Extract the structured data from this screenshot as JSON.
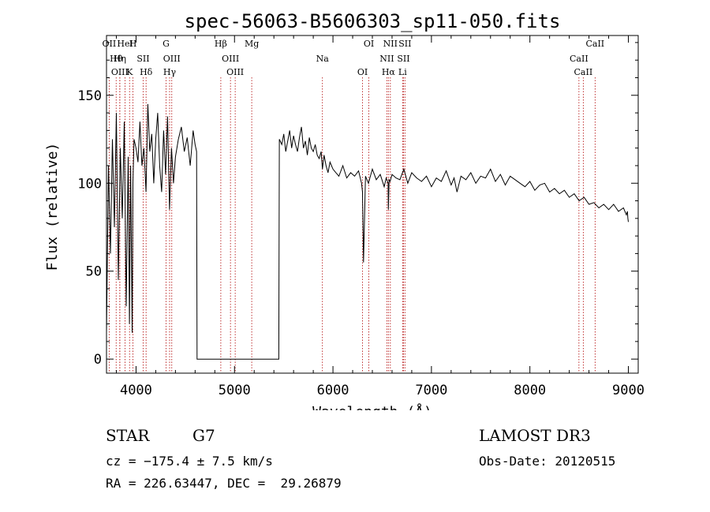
{
  "chart_data": {
    "type": "line",
    "title": "spec-56063-B5606303_sp11-050.fits",
    "xlabel": "Wavelength (Å)",
    "ylabel": "Flux (relative)",
    "xlim": [
      3700,
      9100
    ],
    "ylim": [
      -8,
      184
    ],
    "xticks": [
      4000,
      5000,
      6000,
      7000,
      8000,
      9000
    ],
    "xtick_labels": [
      "4000",
      "5000",
      "6000",
      "7000",
      "8000",
      "9000"
    ],
    "yticks": [
      0,
      50,
      100,
      150
    ],
    "ytick_labels": [
      "0",
      "50",
      "100",
      "150"
    ],
    "grid": false,
    "gap": [
      4620,
      5450
    ],
    "series": [
      {
        "name": "spectrum",
        "x": [
          3700,
          3720,
          3740,
          3760,
          3780,
          3800,
          3820,
          3840,
          3860,
          3880,
          3900,
          3920,
          3933,
          3945,
          3960,
          3968,
          3980,
          4000,
          4020,
          4040,
          4060,
          4080,
          4101,
          4120,
          4140,
          4160,
          4180,
          4200,
          4220,
          4240,
          4260,
          4280,
          4300,
          4320,
          4340,
          4360,
          4380,
          4400,
          4430,
          4460,
          4490,
          4520,
          4550,
          4580,
          4600,
          4615,
          4620,
          5450,
          5455,
          5480,
          5500,
          5520,
          5540,
          5560,
          5580,
          5600,
          5620,
          5640,
          5660,
          5680,
          5700,
          5720,
          5740,
          5760,
          5780,
          5800,
          5820,
          5840,
          5860,
          5880,
          5893,
          5910,
          5930,
          5950,
          5970,
          6000,
          6030,
          6060,
          6100,
          6140,
          6180,
          6220,
          6260,
          6290,
          6300,
          6310,
          6330,
          6360,
          6400,
          6440,
          6480,
          6520,
          6540,
          6560,
          6563,
          6570,
          6580,
          6600,
          6640,
          6680,
          6720,
          6760,
          6800,
          6850,
          6900,
          6950,
          7000,
          7050,
          7100,
          7150,
          7200,
          7230,
          7260,
          7300,
          7350,
          7400,
          7450,
          7500,
          7550,
          7600,
          7650,
          7700,
          7750,
          7800,
          7850,
          7900,
          7950,
          8000,
          8050,
          8100,
          8150,
          8200,
          8250,
          8300,
          8350,
          8400,
          8450,
          8500,
          8550,
          8600,
          8650,
          8700,
          8750,
          8800,
          8850,
          8900,
          8950,
          8980,
          8990,
          8995,
          9000
        ],
        "values": [
          15,
          110,
          60,
          125,
          75,
          140,
          45,
          120,
          80,
          135,
          30,
          115,
          20,
          110,
          15,
          100,
          125,
          120,
          112,
          135,
          110,
          120,
          95,
          145,
          118,
          128,
          100,
          125,
          140,
          110,
          95,
          130,
          105,
          138,
          85,
          120,
          100,
          115,
          125,
          132,
          118,
          126,
          110,
          130,
          122,
          118,
          0,
          0,
          125,
          122,
          128,
          118,
          124,
          130,
          120,
          127,
          122,
          118,
          126,
          132,
          120,
          124,
          116,
          126,
          120,
          118,
          122,
          116,
          114,
          118,
          108,
          116,
          110,
          106,
          112,
          108,
          106,
          104,
          110,
          103,
          106,
          104,
          107,
          100,
          95,
          55,
          104,
          100,
          108,
          102,
          105,
          98,
          103,
          100,
          85,
          102,
          101,
          105,
          103,
          102,
          108,
          100,
          106,
          103,
          101,
          104,
          98,
          103,
          101,
          107,
          99,
          103,
          95,
          104,
          102,
          106,
          100,
          104,
          103,
          108,
          101,
          105,
          99,
          104,
          102,
          100,
          98,
          101,
          96,
          99,
          100,
          95,
          97,
          94,
          96,
          92,
          94,
          90,
          92,
          88,
          89,
          86,
          88,
          85,
          88,
          84,
          86,
          82,
          84,
          80,
          78
        ]
      }
    ],
    "lines": [
      {
        "label": "OII",
        "wavelength": 3727
      },
      {
        "label": "Hθ",
        "wavelength": 3798
      },
      {
        "label": "OIII",
        "wavelength": 3835
      },
      {
        "label": "HeI",
        "wavelength": 3889
      },
      {
        "label": "Hη",
        "wavelength": 3835
      },
      {
        "label": "K",
        "wavelength": 3934
      },
      {
        "label": "H",
        "wavelength": 3969
      },
      {
        "label": "SII",
        "wavelength": 4072
      },
      {
        "label": "Hδ",
        "wavelength": 4102
      },
      {
        "label": "G",
        "wavelength": 4305
      },
      {
        "label": "OIII",
        "wavelength": 4363
      },
      {
        "label": "Hγ",
        "wavelength": 4341
      },
      {
        "label": "Hβ",
        "wavelength": 4861
      },
      {
        "label": "OIII",
        "wavelength": 4959
      },
      {
        "label": "OIII",
        "wavelength": 5007
      },
      {
        "label": "Mg",
        "wavelength": 5175
      },
      {
        "label": "Na",
        "wavelength": 5893
      },
      {
        "label": "OI",
        "wavelength": 6300
      },
      {
        "label": "OI",
        "wavelength": 6364
      },
      {
        "label": "NII",
        "wavelength": 6548
      },
      {
        "label": "Hα",
        "wavelength": 6563
      },
      {
        "label": "NII",
        "wavelength": 6583
      },
      {
        "label": "SII",
        "wavelength": 6716
      },
      {
        "label": "Li",
        "wavelength": 6707
      },
      {
        "label": "SII",
        "wavelength": 6731
      },
      {
        "label": "CaII",
        "wavelength": 8498
      },
      {
        "label": "CaII",
        "wavelength": 8542
      },
      {
        "label": "CaII",
        "wavelength": 8662
      }
    ]
  },
  "info": {
    "object_class": "STAR",
    "subclass": "G7",
    "survey": "LAMOST DR3",
    "redshift": "cz = −175.4 ± 7.5 km/s",
    "obs_date": "Obs-Date: 20120515",
    "coordinates": "RA = 226.63447, DEC =  29.26879"
  }
}
